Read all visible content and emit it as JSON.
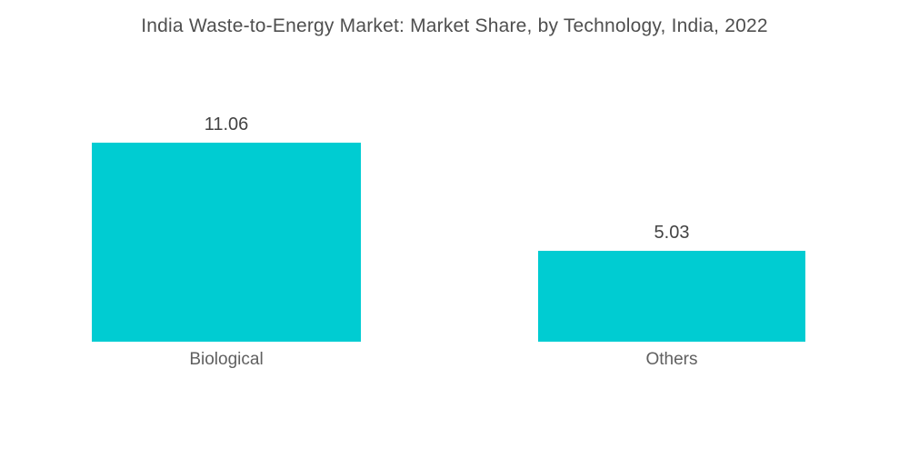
{
  "title": "India Waste-to-Energy Market: Market Share, by Technology, India, 2022",
  "colors": {
    "background": "#FFFFFF",
    "bar": "#00CCD2",
    "title_text": "#4F4F4F",
    "value_text": "#434343",
    "category_text": "#606060"
  },
  "chart_data": {
    "type": "bar",
    "orientation": "vertical",
    "title": "India Waste-to-Energy Market: Market Share, by Technology, India, 2022",
    "categories": [
      "Biological",
      "Others"
    ],
    "values": [
      11.06,
      5.03
    ],
    "value_labels": [
      "11.06",
      "5.03"
    ],
    "series": [
      {
        "name": "Market Share",
        "values": [
          11.06,
          5.03
        ]
      }
    ],
    "xlabel": "",
    "ylabel": "",
    "ylim": [
      0,
      11.06
    ],
    "grid": false,
    "legend": "none",
    "axes_visible": false,
    "bar_color": "#00CCD2"
  }
}
